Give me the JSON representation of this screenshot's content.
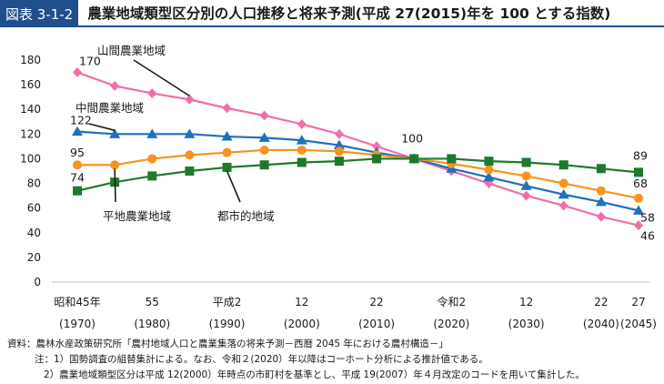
{
  "header": {
    "badge": "図表 3-1-2",
    "title": "農業地域類型区分別の人口推移と将来予測(平成 27(2015)年を 100 とする指数)"
  },
  "notes": {
    "source": "資料：農林水産政策研究所「農村地域人口と農業集落の将来予測－西暦 2045 年における農村構造－」",
    "note1": "注：1）国勢調査の組替集計による。なお、令和２(2020）年以降はコーホート分析による推計値である。",
    "note2": "2）農業地域類型区分は平成 12(2000）年時点の市町村を基準とし、平成 19(2007）年４月改定のコードを用いて集計した。"
  },
  "chart_data": {
    "type": "line",
    "title": "",
    "xlabel": "",
    "ylabel": "",
    "ylim": [
      0,
      180
    ],
    "yticks": [
      0,
      20,
      40,
      60,
      80,
      100,
      120,
      140,
      160,
      180
    ],
    "x": [
      1970,
      1975,
      1980,
      1985,
      1990,
      1995,
      2000,
      2005,
      2010,
      2015,
      2020,
      2025,
      2030,
      2035,
      2040,
      2045
    ],
    "xtick_labels": [
      {
        "x": 1970,
        "era": "昭和45年",
        "year": "(1970)"
      },
      {
        "x": 1980,
        "era": "55",
        "year": "(1980)"
      },
      {
        "x": 1990,
        "era": "平成2",
        "year": "(1990)"
      },
      {
        "x": 2000,
        "era": "12",
        "year": "(2000)"
      },
      {
        "x": 2010,
        "era": "22",
        "year": "(2010)"
      },
      {
        "x": 2020,
        "era": "令和2",
        "year": "(2020)"
      },
      {
        "x": 2030,
        "era": "12",
        "year": "(2030)"
      },
      {
        "x": 2040,
        "era": "22",
        "year": "(2040)"
      },
      {
        "x": 2045,
        "era": "27",
        "year": "(2045)"
      }
    ],
    "grid": false,
    "series": [
      {
        "name": "山間農業地域",
        "color": "#f06fa8",
        "marker": "diamond",
        "values": [
          170,
          159,
          153,
          148,
          141,
          135,
          128,
          120,
          110,
          100,
          90,
          80,
          70,
          62,
          53,
          46
        ]
      },
      {
        "name": "中間農業地域",
        "color": "#1f6fbf",
        "marker": "triangle",
        "values": [
          122,
          120,
          120,
          120,
          118,
          117,
          115,
          111,
          105,
          100,
          92,
          85,
          78,
          71,
          65,
          58
        ]
      },
      {
        "name": "平地農業地域",
        "color": "#f7931e",
        "marker": "circle",
        "values": [
          95,
          95,
          100,
          103,
          105,
          107,
          107,
          106,
          103,
          100,
          96,
          91,
          86,
          80,
          74,
          68
        ]
      },
      {
        "name": "都市的地域",
        "color": "#1d7a2b",
        "marker": "square",
        "values": [
          74,
          81,
          86,
          90,
          93,
          95,
          97,
          98,
          100,
          100,
          100,
          98,
          97,
          95,
          92,
          89
        ]
      }
    ],
    "annotations": [
      "170",
      "122",
      "95",
      "74",
      "100",
      "89",
      "68",
      "58",
      "46"
    ]
  }
}
